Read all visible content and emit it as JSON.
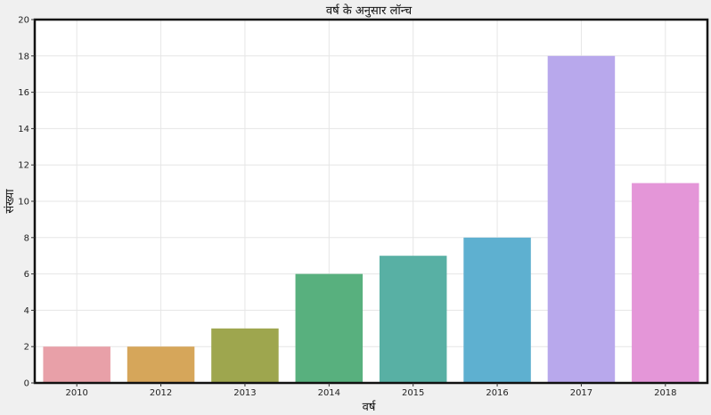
{
  "chart_data": {
    "type": "bar",
    "title": "वर्ष के अनुसार लॉन्च",
    "xlabel": "वर्ष",
    "ylabel": "संख्या",
    "categories": [
      "2010",
      "2012",
      "2013",
      "2014",
      "2015",
      "2016",
      "2017",
      "2018"
    ],
    "values": [
      2,
      2,
      3,
      6,
      7,
      8,
      18,
      11
    ],
    "ylim": [
      0,
      20
    ],
    "yticks": [
      "0",
      "2",
      "4",
      "6",
      "8",
      "10",
      "12",
      "14",
      "16",
      "18",
      "20"
    ],
    "grid": true,
    "colors": [
      "#e8a0a8",
      "#d6a65a",
      "#9ea64e",
      "#58b07e",
      "#58b0a4",
      "#5eb0d0",
      "#b8a8ec",
      "#e496d8"
    ],
    "background": "#ffffff",
    "frame_color": "#111111",
    "grid_color": "#e6e6e6"
  }
}
